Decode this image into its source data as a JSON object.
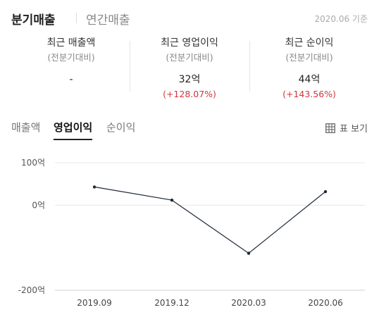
{
  "header": {
    "active_tab": "분기매출",
    "inactive_tab": "연간매출",
    "as_of": "2020.06 기준"
  },
  "summary": [
    {
      "label": "최근 매출액",
      "sub": "(전분기대비)",
      "value": "-",
      "change": ""
    },
    {
      "label": "최근 영업이익",
      "sub": "(전분기대비)",
      "value": "32억",
      "change": "(+128.07%)"
    },
    {
      "label": "최근 순이익",
      "sub": "(전분기대비)",
      "value": "44억",
      "change": "(+143.56%)"
    }
  ],
  "metric_tabs": [
    "매출액",
    "영업이익",
    "순이익"
  ],
  "active_metric": "영업이익",
  "table_view": {
    "icon": "table-icon",
    "label": "표 보기"
  },
  "colors": {
    "accent_negative": "#d0353c",
    "line": "#1f2a3a"
  },
  "chart_data": {
    "type": "line",
    "categories": [
      "2019.09",
      "2019.12",
      "2020.03",
      "2020.06"
    ],
    "values": [
      43,
      12,
      -113,
      32
    ],
    "y_ticks": [
      100,
      0,
      -200
    ],
    "y_tick_labels": [
      "100억",
      "0억",
      "-200억"
    ],
    "ylim": [
      -200,
      100
    ],
    "grid": "horizontal"
  }
}
